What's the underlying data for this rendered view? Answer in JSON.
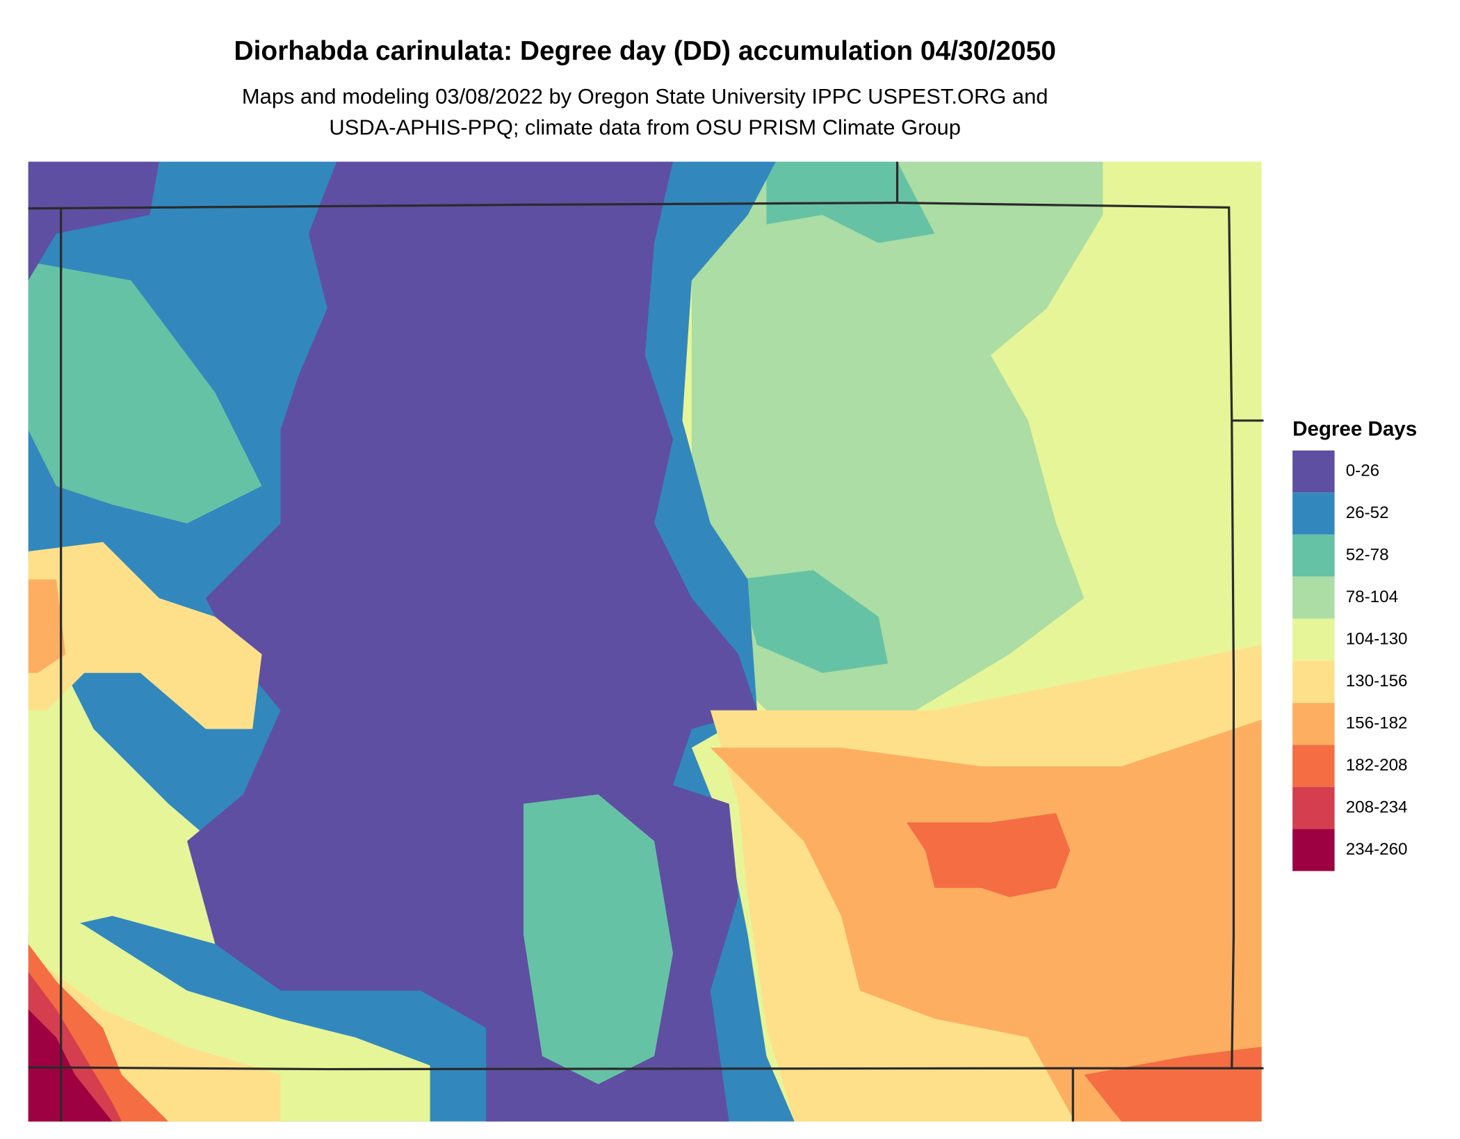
{
  "title": "Diorhabda carinulata: Degree day (DD) accumulation 04/30/2050",
  "subtitle": [
    "Maps and modeling 03/08/2022 by Oregon State University IPPC USPEST.ORG and",
    "USDA-APHIS-PPQ; climate data from OSU PRISM Climate Group"
  ],
  "legend": {
    "title": "Degree Days",
    "items": [
      {
        "label": "0-26",
        "color": "#5e4fa2"
      },
      {
        "label": "26-52",
        "color": "#3288bd"
      },
      {
        "label": "52-78",
        "color": "#66c2a5"
      },
      {
        "label": "78-104",
        "color": "#abdda4"
      },
      {
        "label": "104-130",
        "color": "#e6f598"
      },
      {
        "label": "130-156",
        "color": "#fee08b"
      },
      {
        "label": "156-182",
        "color": "#fdae61"
      },
      {
        "label": "182-208",
        "color": "#f46d43"
      },
      {
        "label": "208-234",
        "color": "#d53e4f"
      },
      {
        "label": "234-260",
        "color": "#9e0142"
      }
    ]
  }
}
